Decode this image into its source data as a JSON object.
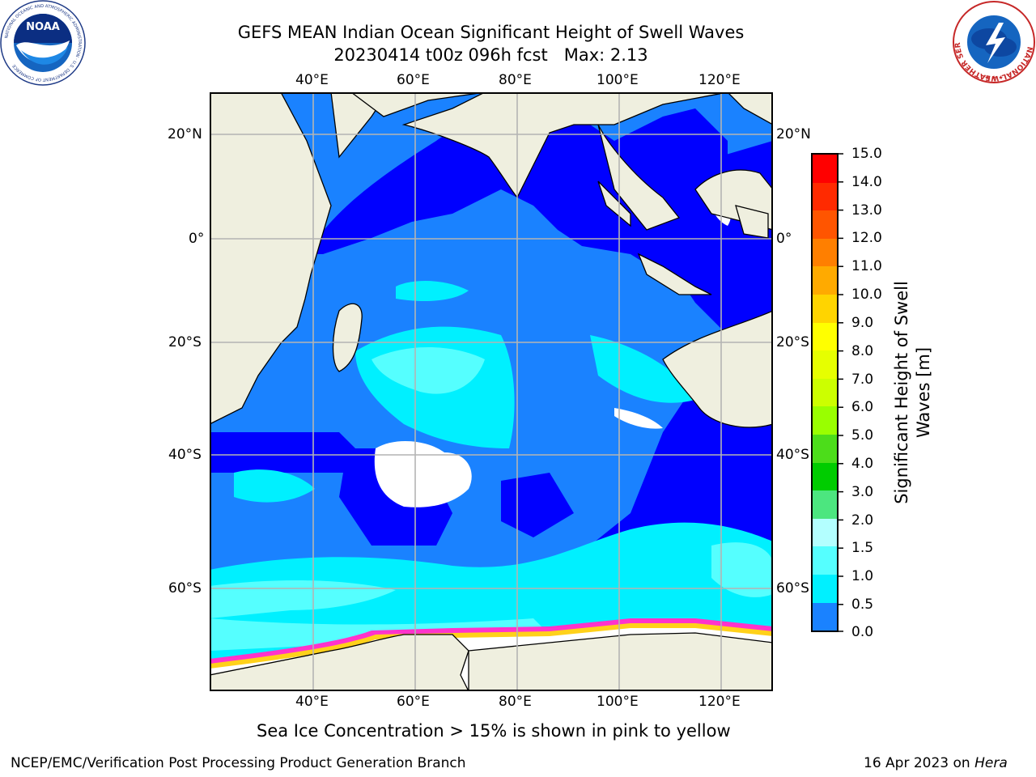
{
  "header": {
    "title_line1": "GEFS MEAN Indian Ocean Significant Height of Swell Waves",
    "title_line2": "20230414 t00z 096h fcst   Max: 2.13"
  },
  "logos": {
    "noaa_text": "NOAA",
    "noaa_ring_text": "NATIONAL OCEANIC AND ATMOSPHERIC ADMINISTRATION · U.S. DEPARTMENT OF COMMERCE",
    "nws_ring_text": "NATIONAL WEATHER SERVICE"
  },
  "map": {
    "lon_labels": [
      "40°E",
      "60°E",
      "80°E",
      "100°E",
      "120°E"
    ],
    "lat_labels_left": [
      "20°N",
      "0°",
      "20°S",
      "40°S",
      "60°S"
    ],
    "lat_labels_right": [
      "20°N",
      "0°",
      "20°S",
      "40°S",
      "60°S"
    ],
    "colors": {
      "land": "#efefdf",
      "ocean_lt_0_5": "#0000ff",
      "ocean_0_5_1_0": "#1a82ff",
      "ocean_1_0_1_5": "#00f0ff",
      "ocean_1_5_2_0": "#55ffff",
      "ice_edge_pink": "#ff33cc",
      "ice_edge_yellow": "#ffd11a",
      "grid": "#b4b4b4"
    }
  },
  "colorbar": {
    "label_line1": "Significant Height of Swell",
    "label_line2": "Waves [m]",
    "ticks": [
      "15.0",
      "14.0",
      "13.0",
      "12.0",
      "11.0",
      "10.0",
      "9.0",
      "8.0",
      "7.0",
      "6.0",
      "5.0",
      "4.0",
      "3.0",
      "2.0",
      "1.5",
      "1.0",
      "0.5",
      "0.0"
    ],
    "colors_top_to_bottom": [
      "#ff0000",
      "#ff2a00",
      "#ff5500",
      "#ff7f00",
      "#ffaa00",
      "#ffd400",
      "#ffff00",
      "#e6ff00",
      "#ccff00",
      "#99ff00",
      "#4cdd1a",
      "#00cc00",
      "#4ce67f",
      "#b3ffff",
      "#55ffff",
      "#00f0ff",
      "#1a82ff",
      "#0000ff"
    ]
  },
  "footer": {
    "ice_note": "Sea Ice Concentration > 15% is shown in pink to yellow",
    "branch": "NCEP/EMC/Verification Post Processing Product Generation Branch",
    "date_prefix": "16 Apr 2023 on ",
    "date_machine": "Hera"
  }
}
